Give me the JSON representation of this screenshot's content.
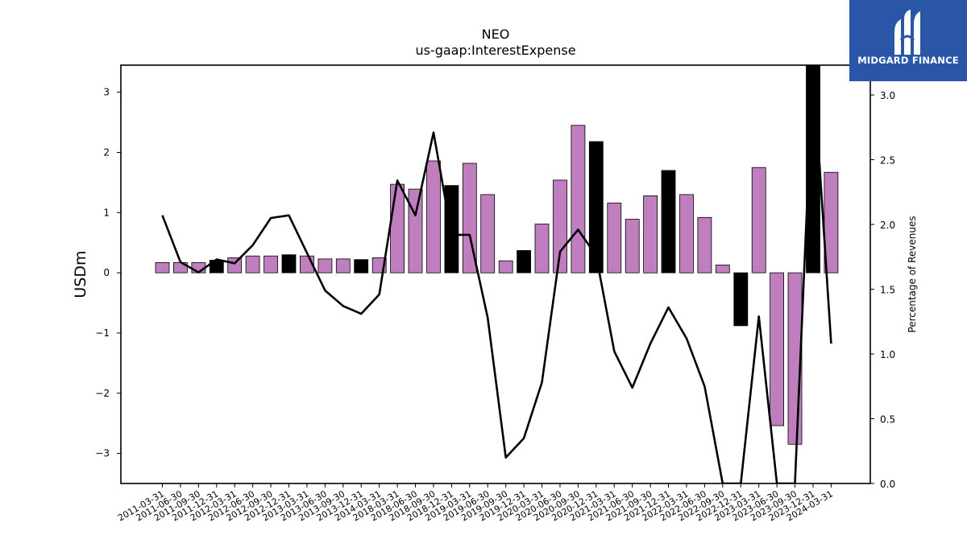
{
  "header": {
    "title": "NEO",
    "subtitle": "us-gaap:InterestExpense"
  },
  "logo": {
    "text": "MIDGARD FINANCE",
    "icon": "midgard-logo-icon",
    "background": "#2a56a8"
  },
  "chart_data": {
    "type": "bar",
    "title": "NEO",
    "subtitle": "us-gaap:InterestExpense",
    "ylabel": "USDm",
    "y2label": "Percentage of Revenues",
    "ylim": [
      -3.5,
      3.45
    ],
    "y2lim": [
      0.0,
      3.23
    ],
    "yticks": [
      -3,
      -2,
      -1,
      0,
      1,
      2,
      3
    ],
    "yticklabels": [
      "−3",
      "−2",
      "−1",
      "0",
      "1",
      "2",
      "3"
    ],
    "y2ticks": [
      0.0,
      0.5,
      1.0,
      1.5,
      2.0,
      2.5,
      3.0
    ],
    "y2ticklabels": [
      "0.0",
      "0.5",
      "1.0",
      "1.5",
      "2.0",
      "2.5",
      "3.0"
    ],
    "grid": false,
    "colors": {
      "bar": "#bf7fbf",
      "q4_bar": "#000000",
      "line": "#000000"
    },
    "categories": [
      "2011-03-31",
      "2011-06-30",
      "2011-09-30",
      "2011-12-31",
      "2012-03-31",
      "2012-06-30",
      "2012-09-30",
      "2012-12-31",
      "2013-03-31",
      "2013-06-30",
      "2013-09-30",
      "2013-12-31",
      "2014-03-31",
      "2018-03-31",
      "2018-06-30",
      "2018-09-30",
      "2018-12-31",
      "2019-03-31",
      "2019-06-30",
      "2019-09-30",
      "2019-12-31",
      "2020-03-31",
      "2020-06-30",
      "2020-09-30",
      "2020-12-31",
      "2021-03-31",
      "2021-06-30",
      "2021-09-30",
      "2021-12-31",
      "2022-03-31",
      "2022-06-30",
      "2022-09-30",
      "2022-12-31",
      "2023-03-31",
      "2023-06-30",
      "2023-09-30",
      "2023-12-31",
      "2024-03-31"
    ],
    "series": [
      {
        "kind": "bar",
        "values": [
          0.17,
          0.17,
          0.17,
          0.21,
          0.25,
          0.28,
          0.28,
          0.3,
          0.28,
          0.23,
          0.23,
          0.22,
          0.25,
          1.47,
          1.39,
          1.86,
          1.45,
          1.82,
          1.3,
          0.2,
          0.37,
          0.81,
          1.54,
          2.45,
          2.18,
          1.16,
          0.89,
          1.28,
          1.7,
          1.3,
          0.92,
          0.13,
          -0.88,
          1.75,
          -2.54,
          -2.85,
          3.45,
          1.67
        ],
        "highlight": [
          false,
          false,
          false,
          true,
          false,
          false,
          false,
          true,
          false,
          false,
          false,
          true,
          false,
          false,
          false,
          false,
          true,
          false,
          false,
          false,
          true,
          false,
          false,
          false,
          true,
          false,
          false,
          false,
          true,
          false,
          false,
          false,
          true,
          false,
          false,
          false,
          true,
          false
        ]
      },
      {
        "kind": "line",
        "axis": "right",
        "values": [
          2.07,
          1.71,
          1.63,
          1.73,
          1.7,
          1.84,
          2.05,
          2.07,
          1.78,
          1.49,
          1.37,
          1.31,
          1.46,
          2.34,
          2.07,
          2.71,
          1.92,
          1.92,
          1.28,
          0.2,
          0.35,
          0.78,
          1.79,
          1.96,
          1.76,
          1.02,
          0.74,
          1.08,
          1.36,
          1.12,
          0.75,
          0.0,
          0.0,
          1.29,
          0.0,
          0.0,
          3.23,
          1.08
        ]
      }
    ]
  }
}
